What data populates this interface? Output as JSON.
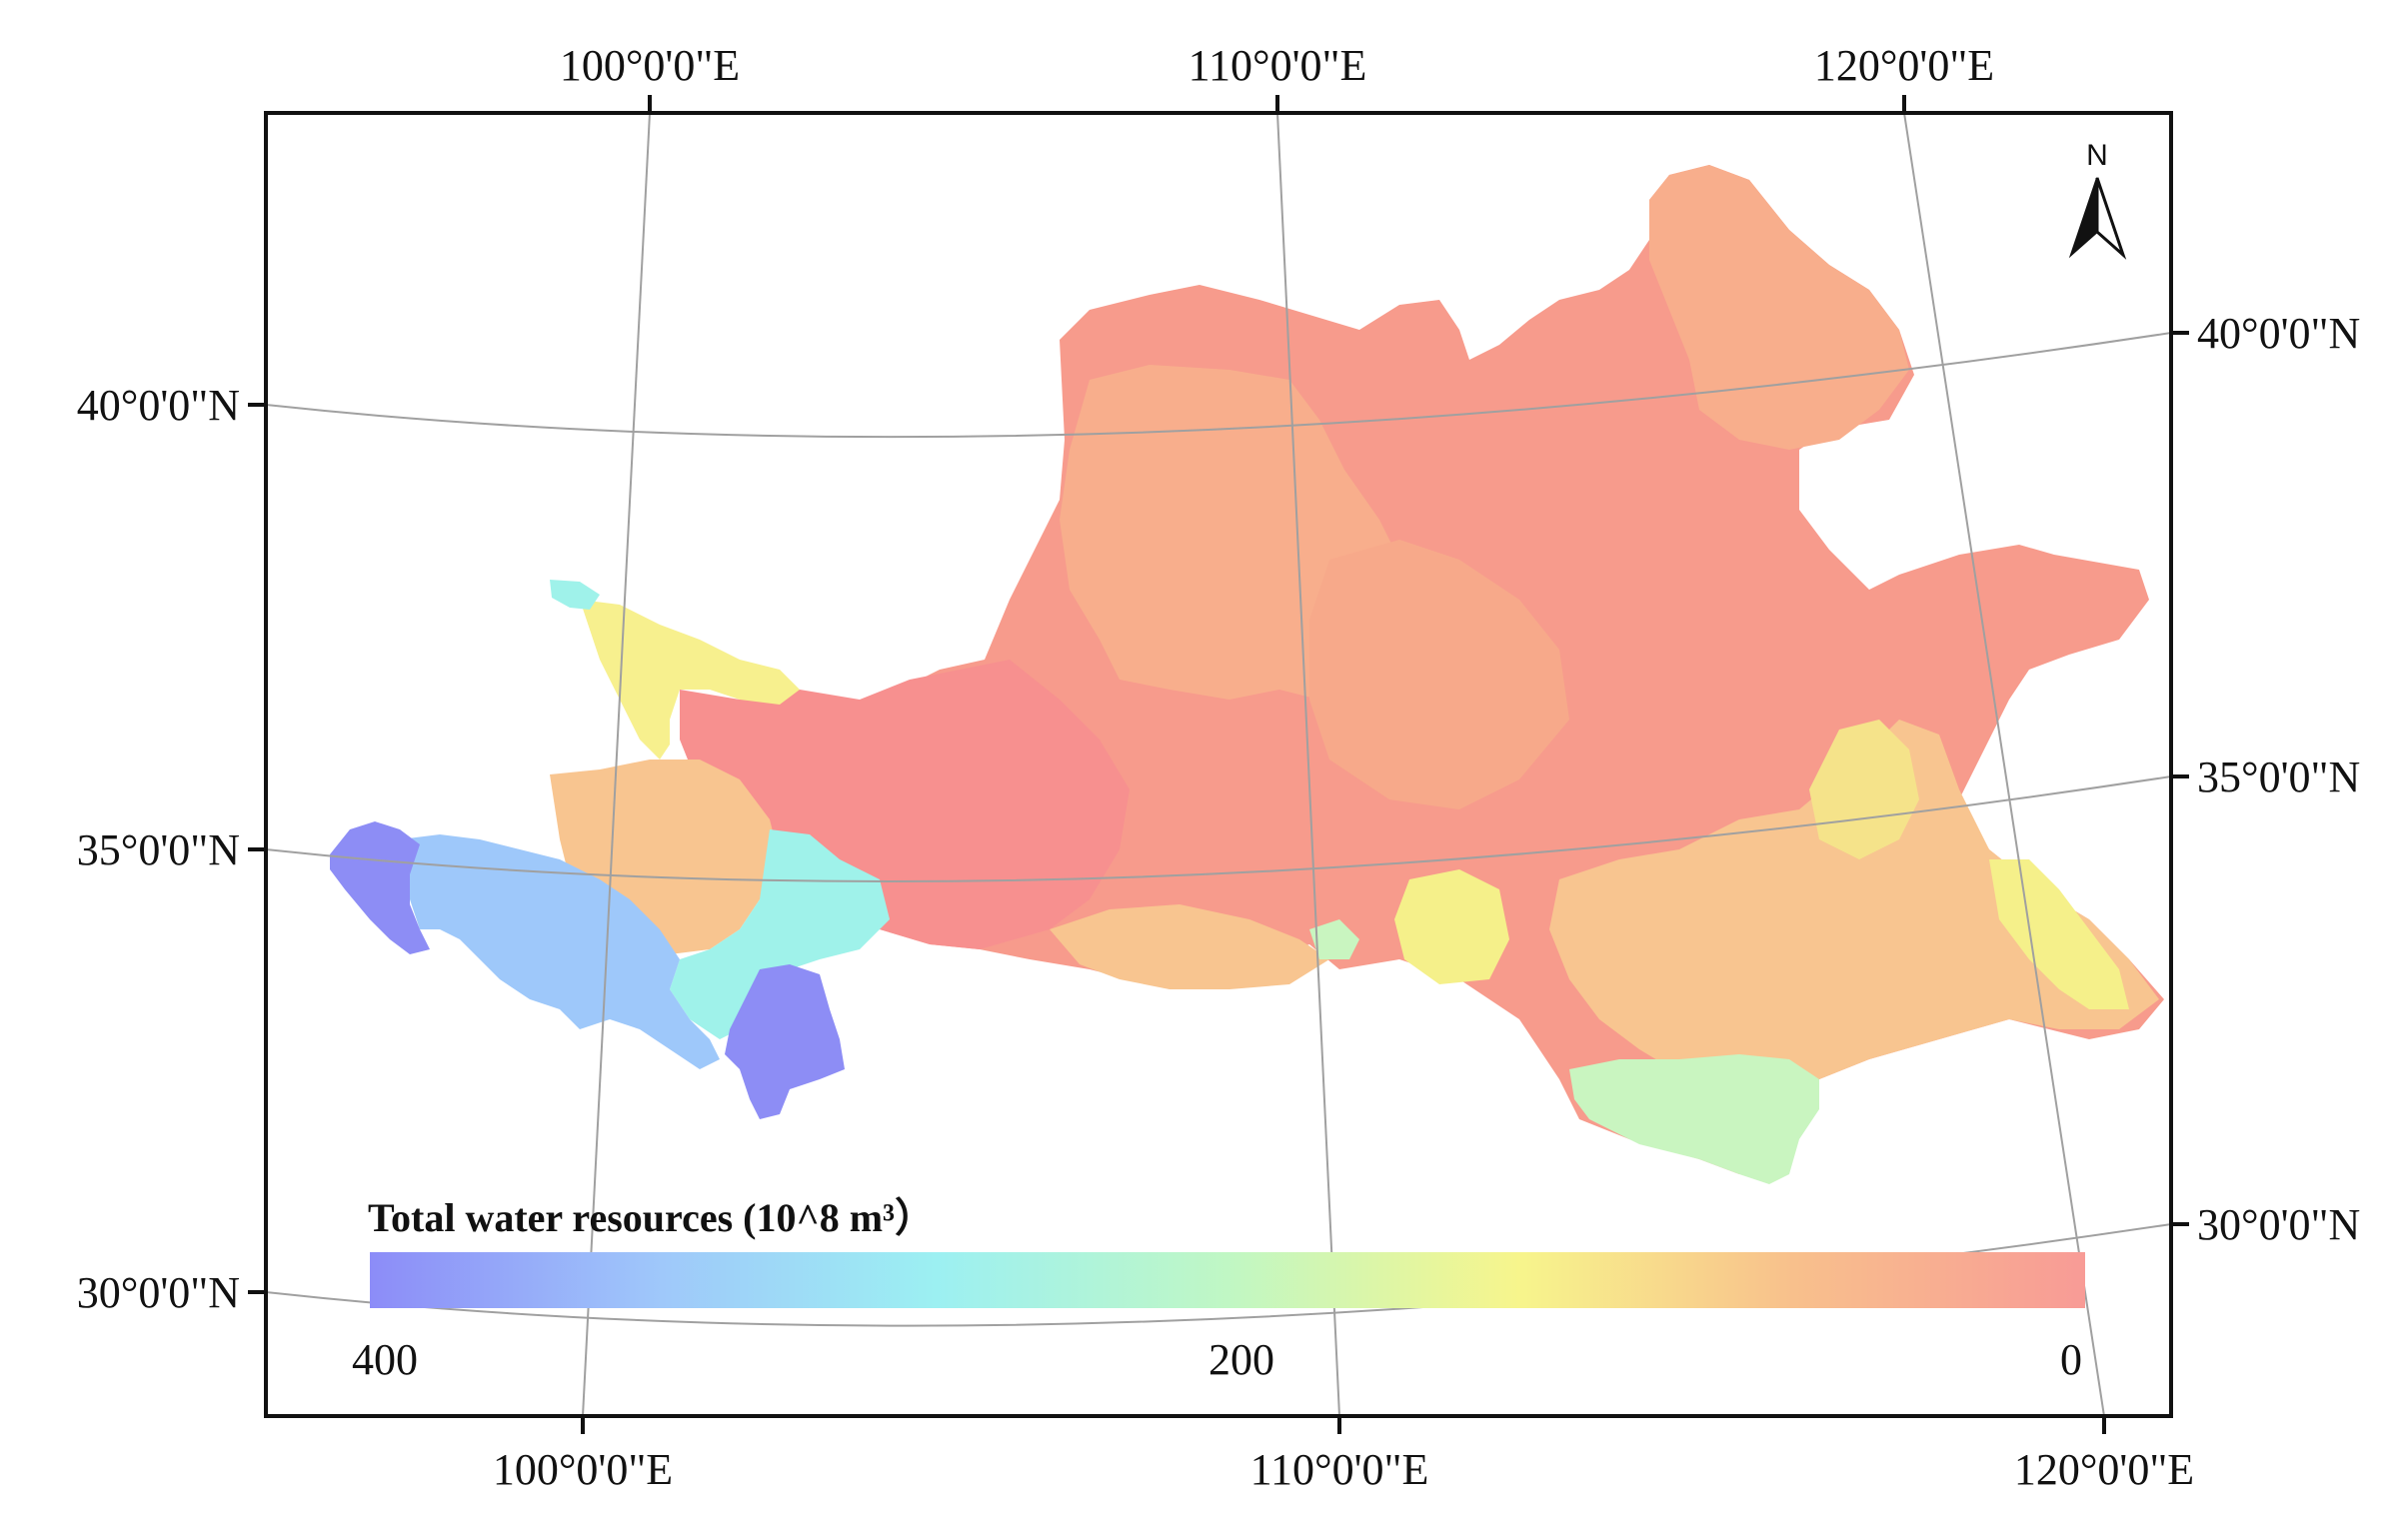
{
  "map": {
    "top_lon_labels": [
      "100°0'0\"E",
      "110°0'0\"E",
      "120°0'0\"E"
    ],
    "bottom_lon_labels": [
      "100°0'0\"E",
      "110°0'0\"E",
      "120°0'0\"E"
    ],
    "left_lat_labels": [
      "40°0'0\"N",
      "35°0'0\"N",
      "30°0'0\"N"
    ],
    "right_lat_labels": [
      "40°0'0\"N",
      "35°0'0\"N",
      "30°0'0\"N"
    ],
    "north_arrow_label": "N"
  },
  "legend": {
    "title": "Total water resources (10^8 m³）",
    "tick_labels": [
      "400",
      "200",
      "0"
    ],
    "values": [
      400,
      200,
      0
    ],
    "colors": [
      "#8c8cf8",
      "#9fc8fa",
      "#9cf0f2",
      "#c0f7c4",
      "#f7f58c",
      "#f8c08c",
      "#f89b96"
    ]
  },
  "region_colors": {
    "purple": "#8d8df5",
    "light_blue": "#9ec8fa",
    "cyan": "#9ff2ea",
    "light_green": "#c9f5c0",
    "yellow": "#f5f08a",
    "light_orange": "#f8c590",
    "orange": "#f8ae8c",
    "salmon": "#f79b8c",
    "red": "#f7908f"
  }
}
